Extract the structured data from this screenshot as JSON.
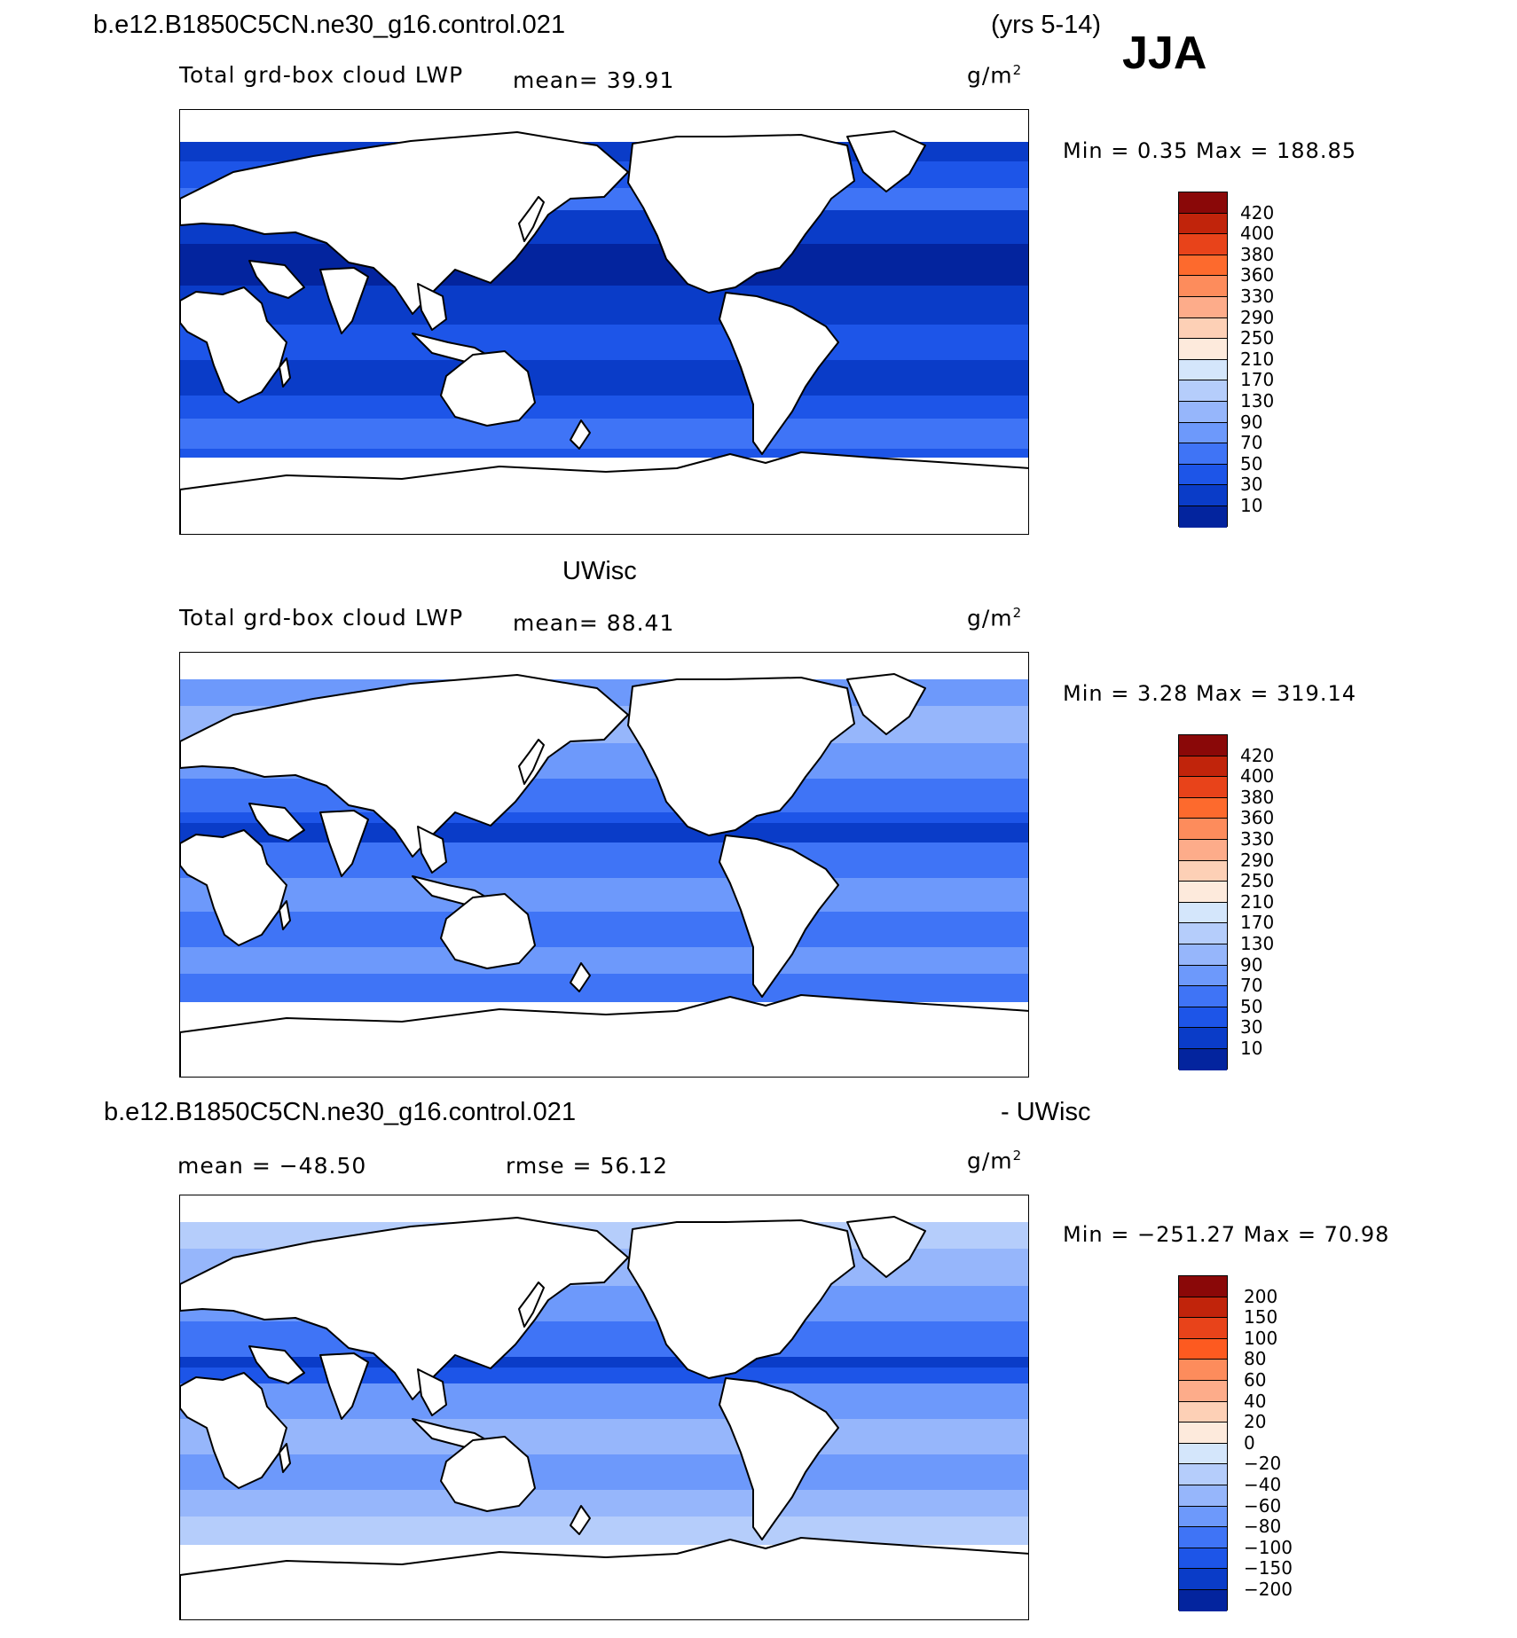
{
  "case_name": "b.e12.B1850C5CN.ne30_g16.control.021",
  "years": "(yrs 5-14)",
  "season": "JJA",
  "panels": [
    {
      "id": "model",
      "heading": "",
      "field": "Total grd-box cloud LWP",
      "stats_left": "mean=  39.91",
      "stats_right": "",
      "units": "g/m",
      "units_sup": "2",
      "minmax": "Min =    0.35 Max = 188.85",
      "levels": [
        "420",
        "400",
        "380",
        "360",
        "330",
        "290",
        "250",
        "210",
        "170",
        "130",
        "90",
        "70",
        "50",
        "30",
        "10"
      ],
      "colors": [
        "#8a0808",
        "#c1240b",
        "#e8431a",
        "#fd6a2d",
        "#fd8c5c",
        "#fdac8a",
        "#fdd0b6",
        "#fdeadc",
        "#d4e6fb",
        "#b5cdfb",
        "#96b6fb",
        "#6d99fb",
        "#3f74f6",
        "#1d55e8",
        "#0a3cc8",
        "#03249e"
      ],
      "shading": "low"
    },
    {
      "id": "obs",
      "heading": "UWisc",
      "field": "Total grd-box cloud LWP",
      "stats_left": "mean=  88.41",
      "stats_right": "",
      "units": "g/m",
      "units_sup": "2",
      "minmax": "Min =    3.28 Max = 319.14",
      "levels": [
        "420",
        "400",
        "380",
        "360",
        "330",
        "290",
        "250",
        "210",
        "170",
        "130",
        "90",
        "70",
        "50",
        "30",
        "10"
      ],
      "colors": [
        "#8a0808",
        "#c1240b",
        "#e8431a",
        "#fd6a2d",
        "#fd8c5c",
        "#fdac8a",
        "#fdd0b6",
        "#fdeadc",
        "#d4e6fb",
        "#b5cdfb",
        "#96b6fb",
        "#6d99fb",
        "#3f74f6",
        "#1d55e8",
        "#0a3cc8",
        "#03249e"
      ],
      "shading": "mid"
    },
    {
      "id": "diff",
      "heading": "b.e12.B1850C5CN.ne30_g16.control.021",
      "heading_right": "- UWisc",
      "field": "",
      "stats_left": "mean = −48.50",
      "stats_right": "rmse =  56.12",
      "units": "g/m",
      "units_sup": "2",
      "minmax": "Min = −251.27 Max =   70.98",
      "levels": [
        "200",
        "150",
        "100",
        "80",
        "60",
        "40",
        "20",
        "0",
        "−20",
        "−40",
        "−60",
        "−80",
        "−100",
        "−150",
        "−200"
      ],
      "colors": [
        "#8a0808",
        "#c1240b",
        "#e8431a",
        "#fd5a20",
        "#fd8c5c",
        "#fdac8a",
        "#fdd0b6",
        "#fdeadc",
        "#d4e6fb",
        "#b5cdfb",
        "#96b6fb",
        "#6d99fb",
        "#3f74f6",
        "#1d55e8",
        "#0a3cc8",
        "#03249e"
      ],
      "shading": "diff"
    }
  ]
}
